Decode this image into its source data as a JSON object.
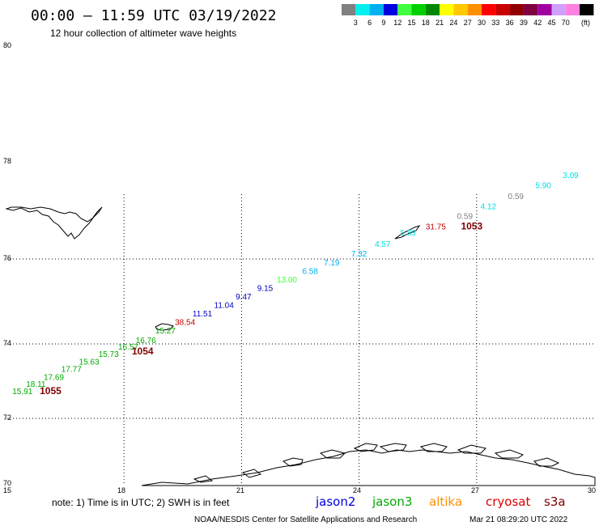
{
  "header": {
    "title": "00:00 – 11:59 UTC 03/19/2022",
    "subtitle": "12 hour collection of altimeter wave heights"
  },
  "scale": {
    "colors": [
      "#808080",
      "#00f0f0",
      "#00b0f0",
      "#0000e0",
      "#40ff40",
      "#00d000",
      "#008800",
      "#ffff00",
      "#ffc800",
      "#ff9000",
      "#ff0000",
      "#c80000",
      "#900000",
      "#800040",
      "#a000a0",
      "#d0a0ff",
      "#ff80e0",
      "#000000"
    ],
    "labels": [
      "3",
      "6",
      "9",
      "12",
      "15",
      "18",
      "21",
      "24",
      "27",
      "30",
      "33",
      "36",
      "39",
      "42",
      "45",
      "70"
    ],
    "unit": "(ft)"
  },
  "axes": {
    "x_ticks": [
      "15",
      "18",
      "21",
      "24",
      "27",
      "30"
    ],
    "y_ticks": [
      "80",
      "78",
      "76",
      "74",
      "72",
      "70"
    ]
  },
  "observations": [
    {
      "text": "15.91",
      "color": "#00aa00",
      "lon": 15.15,
      "lat": 72.65
    },
    {
      "text": "18.11",
      "color": "#00aa00",
      "lon": 15.5,
      "lat": 72.85
    },
    {
      "text": "17.69",
      "color": "#00aa00",
      "lon": 15.95,
      "lat": 73.03
    },
    {
      "text": "17.77",
      "color": "#00aa00",
      "lon": 16.4,
      "lat": 73.25
    },
    {
      "text": "15.63",
      "color": "#00aa00",
      "lon": 16.85,
      "lat": 73.45
    },
    {
      "text": "15.73",
      "color": "#00aa00",
      "lon": 17.35,
      "lat": 73.65
    },
    {
      "text": "16.57",
      "color": "#00aa00",
      "lon": 17.85,
      "lat": 73.85
    },
    {
      "text": "16.76",
      "color": "#00aa00",
      "lon": 18.3,
      "lat": 74.02
    },
    {
      "text": "15.27",
      "color": "#00aa00",
      "lon": 18.8,
      "lat": 74.25
    },
    {
      "text": "38.54",
      "color": "#c80000",
      "lon": 19.3,
      "lat": 74.45
    },
    {
      "text": "11.51",
      "color": "#0000c0",
      "lon": 19.75,
      "lat": 74.65
    },
    {
      "text": "11.04",
      "color": "#0000c0",
      "lon": 20.3,
      "lat": 74.85
    },
    {
      "text": "9.47",
      "color": "#0000c0",
      "lon": 20.85,
      "lat": 75.05
    },
    {
      "text": "9.15",
      "color": "#0000c0",
      "lon": 21.4,
      "lat": 75.25
    },
    {
      "text": "13.00",
      "color": "#40ff40",
      "lon": 21.9,
      "lat": 75.45
    },
    {
      "text": "6.58",
      "color": "#00b0f0",
      "lon": 22.55,
      "lat": 75.65
    },
    {
      "text": "7.19",
      "color": "#00b0f0",
      "lon": 23.1,
      "lat": 75.85
    },
    {
      "text": "7.32",
      "color": "#00b0f0",
      "lon": 23.8,
      "lat": 76.05
    },
    {
      "text": "4.57",
      "color": "#00e0e0",
      "lon": 24.4,
      "lat": 76.25
    },
    {
      "text": "5.83",
      "color": "#00e0e0",
      "lon": 25.05,
      "lat": 76.48
    },
    {
      "text": "31.75",
      "color": "#c80000",
      "lon": 25.7,
      "lat": 76.6
    },
    {
      "text": "0.59",
      "color": "#808080",
      "lon": 26.5,
      "lat": 76.82
    },
    {
      "text": "4.12",
      "color": "#00e0e0",
      "lon": 27.1,
      "lat": 77.02
    },
    {
      "text": "0.59",
      "color": "#808080",
      "lon": 27.8,
      "lat": 77.22
    },
    {
      "text": "5.90",
      "color": "#00e0e0",
      "lon": 28.5,
      "lat": 77.45
    },
    {
      "text": "3.09",
      "color": "#00e0e0",
      "lon": 29.2,
      "lat": 77.65
    }
  ],
  "cycle_labels": [
    {
      "text": "1055",
      "color": "#800000",
      "lon": 15.85,
      "lat": 72.65
    },
    {
      "text": "1054",
      "color": "#800000",
      "lon": 18.2,
      "lat": 73.72
    },
    {
      "text": "1053",
      "color": "#800000",
      "lon": 26.6,
      "lat": 76.6
    }
  ],
  "footer": {
    "note": "note:  1) Time is in UTC;  2) SWH is in feet",
    "satellites": [
      {
        "name": "jason2",
        "color": "#0000e0"
      },
      {
        "name": "jason3",
        "color": "#00aa00"
      },
      {
        "name": "altika",
        "color": "#ff9000"
      },
      {
        "name": "cryosat",
        "color": "#dd0000"
      },
      {
        "name": "s3a",
        "color": "#800000"
      }
    ],
    "credit": "NOAA/NESDIS Center for Satellite Applications and Research",
    "timestamp": "Mar 21 08:29:20 UTC 2022"
  }
}
